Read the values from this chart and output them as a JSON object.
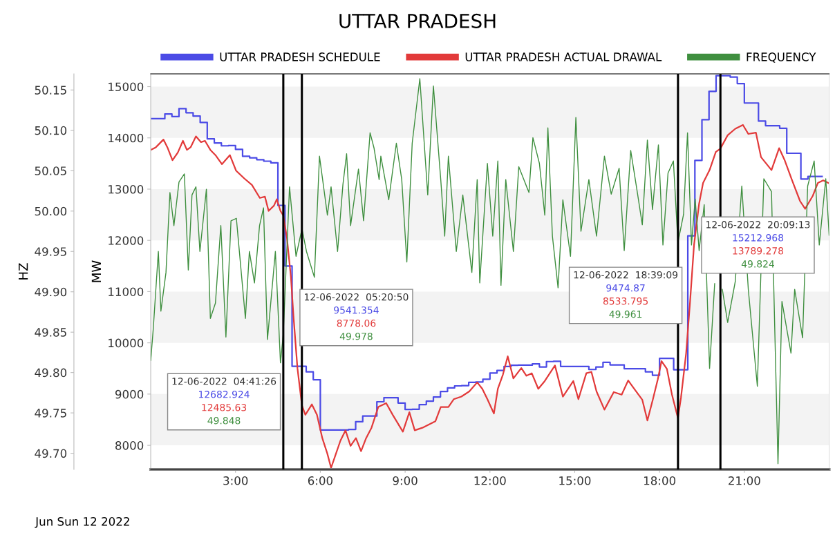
{
  "chart_data": {
    "type": "line",
    "title": "UTTAR PRADESH",
    "xlabel": "Jun Sun 12 2022",
    "ylabel": "MW",
    "y2label": "HZ",
    "xlim": [
      0,
      24
    ],
    "xticks": [
      {
        "value": 3,
        "label": "3:00"
      },
      {
        "value": 6,
        "label": "6:00"
      },
      {
        "value": 9,
        "label": "9:00"
      },
      {
        "value": 12,
        "label": "12:00"
      },
      {
        "value": 15,
        "label": "15:00"
      },
      {
        "value": 18,
        "label": "18:00"
      },
      {
        "value": 21,
        "label": "21:00"
      }
    ],
    "ylim": [
      7530,
      15250
    ],
    "yticks": [
      8000,
      9000,
      10000,
      11000,
      12000,
      13000,
      14000,
      15000
    ],
    "y2lim": [
      49.68,
      50.17
    ],
    "y2ticks": [
      {
        "value": 49.7,
        "label": "49.70"
      },
      49.75,
      {
        "value": 49.8,
        "label": "49.80"
      },
      49.85,
      {
        "value": 49.9,
        "label": "49.90"
      },
      49.95,
      {
        "value": 50.0,
        "label": "50.00"
      },
      50.05,
      {
        "value": 50.1,
        "label": "50.10"
      },
      50.15
    ],
    "legend": "top",
    "series": [
      {
        "name": "UTTAR PRADESH SCHEDULE",
        "type": "step",
        "color": "#4b4be6",
        "x": [
          0,
          0.5,
          0.75,
          1.0,
          1.25,
          1.5,
          1.75,
          2.0,
          2.25,
          2.5,
          2.75,
          3.0,
          3.25,
          3.5,
          3.75,
          4.0,
          4.25,
          4.5,
          4.75,
          5.0,
          5.5,
          5.75,
          6.0,
          7.0,
          7.25,
          7.5,
          8.0,
          8.25,
          8.75,
          9.0,
          9.25,
          9.5,
          9.75,
          10.0,
          10.25,
          10.5,
          10.75,
          11.0,
          11.25,
          11.5,
          11.75,
          12.0,
          12.25,
          12.5,
          12.75,
          13.0,
          13.5,
          13.75,
          14.0,
          14.25,
          14.5,
          15.5,
          15.75,
          16.0,
          16.25,
          16.75,
          17.5,
          17.75,
          18.0,
          18.5,
          19.0,
          19.25,
          19.5,
          19.75,
          20.0,
          20.5,
          20.75,
          21.0,
          21.5,
          21.75,
          22.25,
          22.5,
          23.0,
          23.25,
          23.75
        ],
        "values": [
          14374,
          14465,
          14415,
          14570,
          14490,
          14425,
          14300,
          13980,
          13900,
          13845,
          13850,
          13775,
          13640,
          13610,
          13575,
          13545,
          13513,
          12683,
          11500,
          9541,
          9433,
          9280,
          8300,
          8310,
          8460,
          8572,
          8850,
          8930,
          8825,
          8700,
          8705,
          8795,
          8863,
          8943,
          9050,
          9120,
          9160,
          9165,
          9230,
          9235,
          9290,
          9410,
          9460,
          9540,
          9563,
          9565,
          9590,
          9530,
          9635,
          9640,
          9540,
          9480,
          9530,
          9620,
          9570,
          9495,
          9433,
          9367,
          9697,
          9475,
          12088,
          13560,
          14354,
          14908,
          15213,
          15186,
          15060,
          14680,
          14328,
          14238,
          14188,
          13700,
          13197,
          13247,
          13247
        ]
      },
      {
        "name": "UTTAR PRADESH ACTUAL DRAWAL",
        "color": "#e23a3a",
        "x": [
          0,
          0.18,
          0.45,
          0.59,
          0.77,
          0.96,
          1.14,
          1.28,
          1.41,
          1.6,
          1.78,
          1.92,
          2.11,
          2.29,
          2.52,
          2.8,
          3.02,
          3.31,
          3.58,
          3.86,
          4.04,
          4.17,
          4.36,
          4.46,
          4.59,
          4.69,
          4.82,
          4.96,
          5.05,
          5.19,
          5.35,
          5.47,
          5.7,
          5.88,
          6.07,
          6.25,
          6.38,
          6.52,
          6.71,
          6.89,
          7.07,
          7.26,
          7.44,
          7.62,
          7.81,
          8.05,
          8.33,
          8.56,
          8.92,
          9.15,
          9.34,
          9.61,
          10.07,
          10.26,
          10.53,
          10.72,
          10.99,
          11.27,
          11.55,
          11.73,
          11.91,
          12.14,
          12.28,
          12.46,
          12.63,
          12.83,
          13.11,
          13.29,
          13.48,
          13.71,
          13.94,
          14.3,
          14.58,
          14.95,
          15.13,
          15.41,
          15.59,
          15.77,
          16.05,
          16.38,
          16.66,
          16.89,
          17.12,
          17.39,
          17.57,
          17.76,
          17.94,
          18.07,
          18.26,
          18.44,
          18.65,
          18.76,
          18.94,
          19.08,
          19.22,
          19.4,
          19.54,
          19.77,
          19.99,
          20.15,
          20.41,
          20.68,
          20.95,
          21.14,
          21.41,
          21.59,
          21.96,
          22.23,
          22.42,
          22.69,
          22.97,
          23.15,
          23.42,
          23.6,
          23.79,
          23.97
        ],
        "values": [
          13765,
          13816,
          13968,
          13816,
          13563,
          13715,
          13943,
          13765,
          13816,
          14029,
          13917,
          13943,
          13765,
          13664,
          13487,
          13664,
          13360,
          13208,
          13081,
          12828,
          12853,
          12575,
          12678,
          12803,
          12575,
          12486,
          12043,
          11282,
          10522,
          9508,
          8778,
          8596,
          8799,
          8596,
          8140,
          7835,
          7560,
          7785,
          8089,
          8292,
          7988,
          8140,
          7886,
          8140,
          8343,
          8748,
          8824,
          8596,
          8266,
          8646,
          8292,
          8343,
          8469,
          8748,
          8748,
          8900,
          8951,
          9052,
          9229,
          9103,
          8900,
          8621,
          9103,
          9382,
          9737,
          9306,
          9509,
          9357,
          9407,
          9103,
          9255,
          9559,
          8951,
          9255,
          8900,
          9407,
          9433,
          9053,
          8697,
          9039,
          8989,
          9266,
          9090,
          8888,
          8485,
          8888,
          9291,
          9644,
          9492,
          8989,
          8534,
          8938,
          9795,
          10802,
          11911,
          12717,
          13120,
          13372,
          13724,
          13789,
          14052,
          14178,
          14253,
          14077,
          14102,
          13624,
          13372,
          13800,
          13573,
          13170,
          12767,
          12616,
          12868,
          13120,
          13170,
          13120
        ]
      },
      {
        "name": "FREQUENCY",
        "axis": "y2",
        "color": "#3f8f3f",
        "x": [
          0.0,
          0.09,
          0.27,
          0.36,
          0.54,
          0.68,
          0.82,
          1.0,
          1.19,
          1.33,
          1.46,
          1.6,
          1.74,
          1.97,
          2.11,
          2.29,
          2.48,
          2.66,
          2.84,
          3.03,
          3.35,
          3.49,
          3.67,
          3.85,
          3.99,
          4.13,
          4.41,
          4.59,
          4.69,
          4.91,
          5.14,
          5.35,
          5.51,
          5.79,
          5.97,
          6.25,
          6.38,
          6.61,
          6.8,
          6.93,
          7.07,
          7.35,
          7.53,
          7.76,
          7.9,
          8.08,
          8.14,
          8.42,
          8.69,
          8.88,
          9.06,
          9.25,
          9.52,
          9.8,
          10.0,
          10.26,
          10.4,
          10.53,
          10.81,
          11.04,
          11.36,
          11.55,
          11.64,
          11.91,
          12.1,
          12.28,
          12.39,
          12.56,
          12.83,
          13.02,
          13.38,
          13.52,
          13.75,
          13.94,
          14.05,
          14.21,
          14.41,
          14.58,
          14.85,
          15.04,
          15.22,
          15.5,
          15.77,
          16.05,
          16.29,
          16.57,
          16.75,
          16.98,
          17.21,
          17.39,
          17.57,
          17.75,
          17.96,
          18.12,
          18.3,
          18.49,
          18.65,
          18.85,
          18.99,
          19.13,
          19.26,
          19.4,
          19.58,
          19.77,
          19.95,
          20.15,
          20.22,
          20.41,
          20.68,
          20.91,
          21.14,
          21.46,
          21.69,
          21.96,
          22.19,
          22.33,
          22.65,
          22.78,
          23.06,
          23.24,
          23.47,
          23.65,
          23.88,
          24.0
        ],
        "values": [
          49.815,
          49.854,
          49.95,
          49.876,
          49.924,
          50.023,
          49.982,
          50.036,
          50.046,
          49.927,
          50.02,
          50.03,
          49.95,
          50.027,
          49.867,
          49.886,
          49.982,
          49.844,
          49.988,
          49.991,
          49.867,
          49.95,
          49.911,
          49.982,
          50.004,
          49.841,
          49.95,
          49.812,
          49.848,
          50.03,
          49.944,
          49.978,
          49.95,
          49.918,
          50.068,
          49.995,
          50.03,
          49.95,
          50.033,
          50.071,
          49.982,
          50.052,
          49.988,
          50.097,
          50.078,
          50.039,
          50.068,
          50.014,
          50.084,
          50.039,
          49.937,
          50.084,
          50.164,
          50.02,
          50.155,
          50.039,
          49.969,
          50.068,
          49.95,
          50.02,
          49.924,
          50.039,
          49.911,
          50.059,
          49.969,
          50.062,
          49.908,
          50.039,
          49.95,
          50.055,
          50.023,
          50.091,
          50.059,
          49.995,
          50.103,
          49.969,
          49.905,
          50.014,
          49.944,
          50.116,
          49.975,
          50.039,
          49.969,
          50.068,
          50.021,
          50.053,
          49.951,
          50.075,
          50.024,
          49.983,
          50.088,
          50.002,
          50.082,
          49.958,
          50.047,
          50.062,
          49.961,
          49.996,
          50.097,
          49.958,
          50.015,
          49.951,
          50.008,
          49.805,
          49.91,
          null,
          49.903,
          49.862,
          49.913,
          50.031,
          49.903,
          49.783,
          50.04,
          50.024,
          49.687,
          49.888,
          49.824,
          49.903,
          49.843,
          50.031,
          50.062,
          49.958,
          50.04,
          49.97
        ]
      }
    ],
    "bands": [
      {
        "axis": "y",
        "from": 8000,
        "to": 9000,
        "color": "#f3f3f3"
      },
      {
        "axis": "y",
        "from": 10000,
        "to": 11000,
        "color": "#f3f3f3"
      },
      {
        "axis": "y",
        "from": 12000,
        "to": 13000,
        "color": "#f3f3f3"
      },
      {
        "axis": "y",
        "from": 14000,
        "to": 15000,
        "color": "#f3f3f3"
      }
    ],
    "ref_lines": [
      {
        "axis": "x",
        "value": 4.6906,
        "color": "#000000"
      },
      {
        "axis": "x",
        "value": 5.3472,
        "color": "#000000"
      },
      {
        "axis": "x",
        "value": 18.6525,
        "color": "#000000"
      },
      {
        "axis": "x",
        "value": 20.1536,
        "color": "#000000"
      }
    ],
    "annotations": [
      "12-06-2022  04:41:26",
      "12682.924",
      "12485.63",
      "49.848",
      "12-06-2022  05:20:50",
      "9541.354",
      "8778.06",
      "49.978",
      "12-06-2022  18:39:09",
      "9474.87",
      "8533.795",
      "49.961",
      "12-06-2022  20:09:13",
      "15212.968",
      "13789.278",
      "49.824"
    ]
  }
}
